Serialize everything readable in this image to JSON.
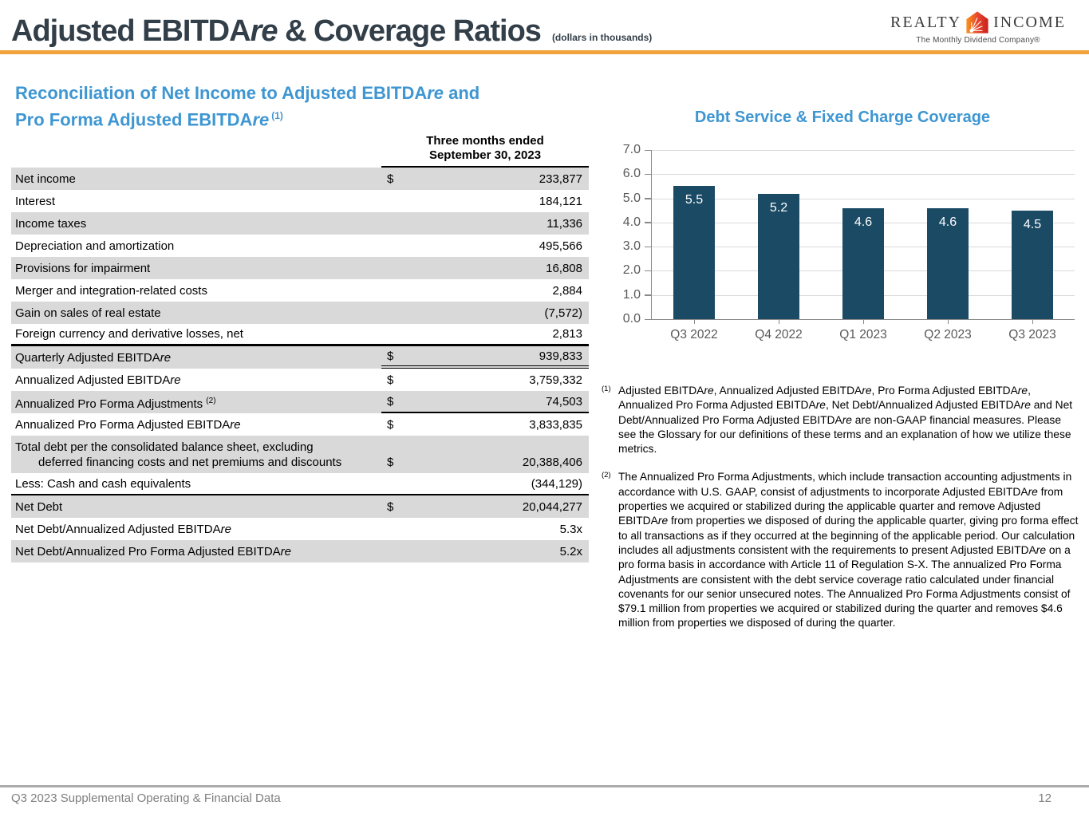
{
  "header": {
    "title": "Adjusted EBITDAre & Coverage Ratios",
    "subtitle": "(dollars in thousands)",
    "accent_color": "#F2A33C",
    "logo": {
      "left": "REALTY",
      "right": "INCOME",
      "tagline": "The Monthly Dividend Company®"
    }
  },
  "table_section": {
    "title_line1": "Reconciliation of Net Income to Adjusted EBITDAre and",
    "title_line2": "Pro Forma Adjusted EBITDAre",
    "title_footnote_ref": "(1)",
    "title_color": "#3E96D2",
    "column_header_line1": "Three months ended",
    "column_header_line2": "September 30, 2023",
    "shaded_row_color": "#D9D9D9",
    "rows": [
      {
        "label": "Net income",
        "dollar": "$",
        "value": "233,877",
        "shaded": true
      },
      {
        "label": "Interest",
        "dollar": "",
        "value": "184,121",
        "shaded": false
      },
      {
        "label": "Income taxes",
        "dollar": "",
        "value": "11,336",
        "shaded": true
      },
      {
        "label": "Depreciation and amortization",
        "dollar": "",
        "value": "495,566",
        "shaded": false
      },
      {
        "label": "Provisions for impairment",
        "dollar": "",
        "value": "16,808",
        "shaded": true
      },
      {
        "label": "Merger and integration-related costs",
        "dollar": "",
        "value": "2,884",
        "shaded": false
      },
      {
        "label": "Gain on sales of real estate",
        "dollar": "",
        "value": "(7,572)",
        "shaded": true
      },
      {
        "label": "Foreign currency and derivative losses, net",
        "dollar": "",
        "value": "2,813",
        "shaded": false,
        "border_bottom": "thick"
      },
      {
        "label": "Quarterly Adjusted EBITDAre",
        "dollar": "$",
        "value": "939,833",
        "shaded": true,
        "value_border": "double"
      },
      {
        "label": "Annualized Adjusted EBITDAre",
        "dollar": "$",
        "value": "3,759,332",
        "shaded": false
      },
      {
        "label": "Annualized Pro Forma Adjustments",
        "label_sup": "(2)",
        "dollar": "$",
        "value": "74,503",
        "shaded": true,
        "value_border": "single"
      },
      {
        "label": "Annualized Pro Forma Adjusted EBITDAre",
        "dollar": "$",
        "value": "3,833,835",
        "shaded": false
      },
      {
        "label": "Total debt per the consolidated balance sheet, excluding",
        "label2": "deferred financing costs and net premiums and discounts",
        "dollar": "$",
        "value": "20,388,406",
        "shaded": true
      },
      {
        "label": "Less: Cash and cash equivalents",
        "dollar": "",
        "value": "(344,129)",
        "shaded": false,
        "border_bottom": "thin"
      },
      {
        "label": "Net Debt",
        "dollar": "$",
        "value": "20,044,277",
        "shaded": true
      },
      {
        "label": "Net Debt/Annualized Adjusted EBITDAre",
        "dollar": "",
        "value": "5.3x",
        "shaded": false
      },
      {
        "label": "Net Debt/Annualized Pro Forma Adjusted EBITDAre",
        "dollar": "",
        "value": "5.2x",
        "shaded": true
      }
    ]
  },
  "chart_data": {
    "type": "bar",
    "title": "Debt Service & Fixed Charge Coverage",
    "title_color": "#3E96D2",
    "categories": [
      "Q3 2022",
      "Q4 2022",
      "Q1 2023",
      "Q2 2023",
      "Q3 2023"
    ],
    "values": [
      5.5,
      5.2,
      4.6,
      4.6,
      4.5
    ],
    "data_labels": [
      "5.5",
      "5.2",
      "4.6",
      "4.6",
      "4.5"
    ],
    "ylim": [
      0,
      7
    ],
    "ytick_labels": [
      "7.0",
      "6.0",
      "5.0",
      "4.0",
      "3.0",
      "2.0",
      "1.0",
      "0.0"
    ],
    "grid": true,
    "legend": "none",
    "bar_color": "#1B4A64",
    "data_label_color": "#FFFFFF"
  },
  "footnotes": [
    {
      "ref": "(1)",
      "text": "Adjusted EBITDAre, Annualized Adjusted EBITDAre, Pro Forma Adjusted EBITDAre, Annualized Pro Forma Adjusted EBITDAre, Net Debt/Annualized Adjusted EBITDAre and Net Debt/Annualized Pro Forma Adjusted EBITDAre are non-GAAP financial measures. Please see the Glossary for our definitions of these terms and an explanation of how we utilize these metrics."
    },
    {
      "ref": "(2)",
      "text": "The Annualized Pro Forma Adjustments, which include transaction accounting adjustments in accordance with U.S. GAAP, consist of adjustments to incorporate Adjusted EBITDAre from properties we acquired or stabilized during the applicable quarter and remove Adjusted EBITDAre from properties we disposed of during the applicable quarter, giving pro forma effect to all transactions as if they occurred at the beginning of the applicable period. Our calculation includes all adjustments consistent with the requirements to present Adjusted EBITDAre on a pro forma basis in accordance with Article 11 of Regulation S-X. The annualized Pro Forma Adjustments are consistent with the debt service coverage ratio calculated under financial covenants for our senior unsecured notes. The Annualized Pro Forma Adjustments consist of $79.1 million from properties we acquired or stabilized during the quarter and removes $4.6 million from properties we disposed of during the quarter."
    }
  ],
  "footer": {
    "left": "Q3 2023 Supplemental Operating & Financial Data",
    "page": "12"
  }
}
